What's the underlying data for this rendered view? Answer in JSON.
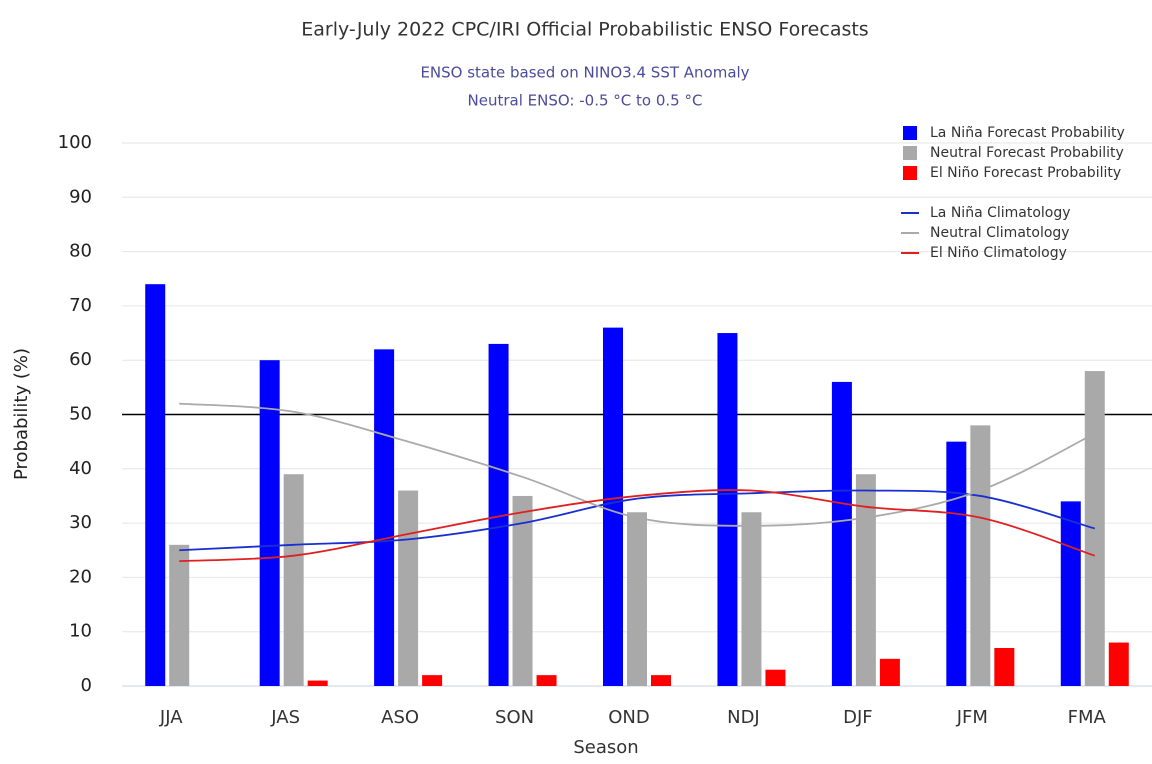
{
  "chart_data": {
    "type": "bar",
    "title": "Early-July 2022 CPC/IRI Official Probabilistic ENSO Forecasts",
    "subtitle": [
      "ENSO state based on NINO3.4 SST Anomaly",
      "Neutral ENSO: -0.5 °C to 0.5 °C"
    ],
    "x_label": "Season",
    "y_label": "Probability (%)",
    "categories": [
      "JJA",
      "JAS",
      "ASO",
      "SON",
      "OND",
      "NDJ",
      "DJF",
      "JFM",
      "FMA"
    ],
    "series": [
      {
        "name": "La Niña Forecast Probability",
        "type": "bar",
        "color": "#0000ff",
        "values": [
          74,
          60,
          62,
          63,
          66,
          65,
          56,
          45,
          34
        ]
      },
      {
        "name": "Neutral Forecast Probability",
        "type": "bar",
        "color": "#a9a9a9",
        "values": [
          26,
          39,
          36,
          35,
          32,
          32,
          39,
          48,
          58
        ]
      },
      {
        "name": "El Niño Forecast Probability",
        "type": "bar",
        "color": "#ff0000",
        "values": [
          0,
          1,
          2,
          2,
          2,
          3,
          5,
          7,
          8
        ]
      },
      {
        "name": "La Niña Climatology",
        "type": "line",
        "color": "#1a2fd0",
        "values": [
          25,
          26,
          27,
          30,
          34.5,
          35.5,
          36,
          35,
          29
        ]
      },
      {
        "name": "Neutral Climatology",
        "type": "line",
        "color": "#aaaaaa",
        "values": [
          52,
          50.5,
          45,
          38.5,
          31,
          29.5,
          31,
          36,
          46.5
        ]
      },
      {
        "name": "El Niño Climatology",
        "type": "line",
        "color": "#e02020",
        "values": [
          23,
          24,
          28,
          32,
          35,
          36,
          33,
          31,
          24
        ]
      }
    ],
    "reference_line": 50,
    "ylim": [
      0,
      100
    ],
    "yticks": [
      0,
      10,
      20,
      30,
      40,
      50,
      60,
      70,
      80,
      90,
      100
    ],
    "grid": true,
    "legend": "top-right"
  }
}
